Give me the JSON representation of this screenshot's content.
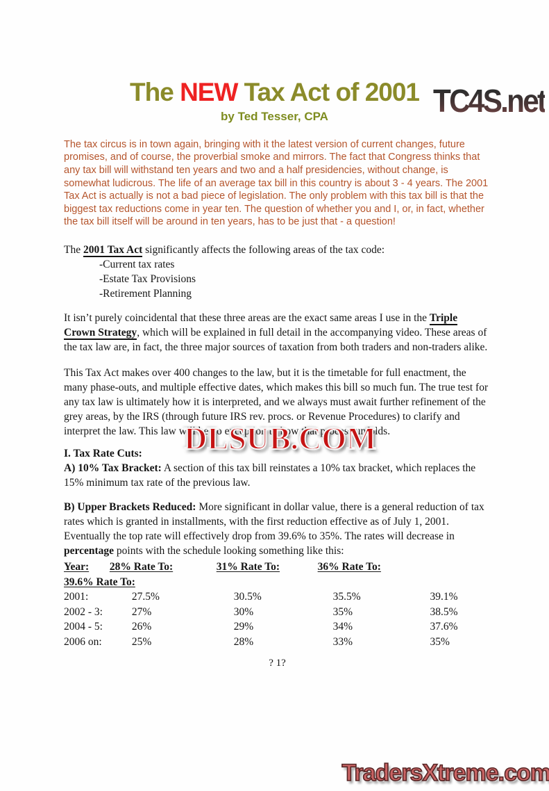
{
  "branding": {
    "site_logo": "TC4S.net",
    "watermark": "DLSUB.COM",
    "footer_logo": "TradersXtreme.com"
  },
  "colors": {
    "title_olive": "#8b8b2a",
    "title_red": "#ee2222",
    "byline_green": "#7e8c1f",
    "intro_rust": "#b5552c",
    "watermark_red": "#c51414",
    "footer_logo_red": "#c96464"
  },
  "header": {
    "title_pre": "The ",
    "title_new": "NEW",
    "title_post": " Tax Act of 2001",
    "byline": "by Ted Tesser, CPA"
  },
  "body": {
    "intro": "The tax circus is in town again, bringing with it the latest version of current changes, future promises, and of course, the proverbial smoke and mirrors. The fact that Congress thinks that any tax bill will withstand ten years and two and a half presidencies, without change, is somewhat ludicrous. The life of an average tax bill in this country is about 3 - 4 years. The 2001 Tax Act is  actually is not a bad piece of legislation. The only problem with this tax bill is that the biggest tax reductions come in year ten. The question of whether you and I, or, in fact, whether the tax bill itself  will be around in ten years, has to be just that - a question!",
    "affects_pre": "The ",
    "affects_link": "2001 Tax Act",
    "affects_post": "  significantly affects the following areas of the tax code:",
    "affects_items": [
      "-Current tax rates",
      "-Estate Tax Provisions",
      "-Retirement Planning"
    ],
    "coincidental_pre": "It isn’t purely coincidental that these three areas are the exact same areas I use in the ",
    "coincidental_bold": "Triple Crown Strategy",
    "coincidental_post": ", which will be explained in full detail in the accompanying video. These areas of the tax law are, in fact, the three major sources of taxation from both traders and non-traders alike.",
    "changes": "This Tax Act makes over 400 changes to the law, but it is the timetable for full enactment, the many phase-outs, and multiple effective dates, which makes this bill so much fun. The true test for any tax law is ultimately how it is interpreted, and we always must await further refinement of the grey areas, by the IRS (through future  IRS  rev. procs. or Revenue Procedures) to clarify and interpret the law. This law will be no exception to how that process unfolds.",
    "section1_heading": "I.  Tax Rate Cuts:",
    "bracket10_label": "A) 10% Tax Bracket:",
    "bracket10_text": " A section of this tax bill reinstates a 10% tax bracket, which replaces the 15% minimum tax rate of the previous law.",
    "upper_label": "B) Upper Brackets Reduced:",
    "upper_text1": " More significant in dollar value, there is a general reduction of tax rates which is granted in installments, with the first reduction effective as of July 1, 2001. Eventually the top rate will effectively drop from 39.6% to 35%.  The rates will decrease in ",
    "upper_bold": "percentage",
    "upper_text2": " points with the schedule looking something like this:"
  },
  "rate_table": {
    "headers": [
      "Year:",
      "28% Rate To:",
      "31% Rate To:",
      "36% Rate To:",
      "39.6% Rate To:"
    ],
    "rows": [
      [
        "2001:",
        "27.5%",
        "30.5%",
        "35.5%",
        "39.1%"
      ],
      [
        "2002 - 3:",
        "27%",
        "30%",
        "35%",
        "38.5%"
      ],
      [
        "2004 - 5:",
        "26%",
        "29%",
        "34%",
        "37.6%"
      ],
      [
        "2006 on:",
        "25%",
        "28%",
        "33%",
        "35%"
      ]
    ]
  },
  "footer": {
    "page_number": "? 1?"
  }
}
